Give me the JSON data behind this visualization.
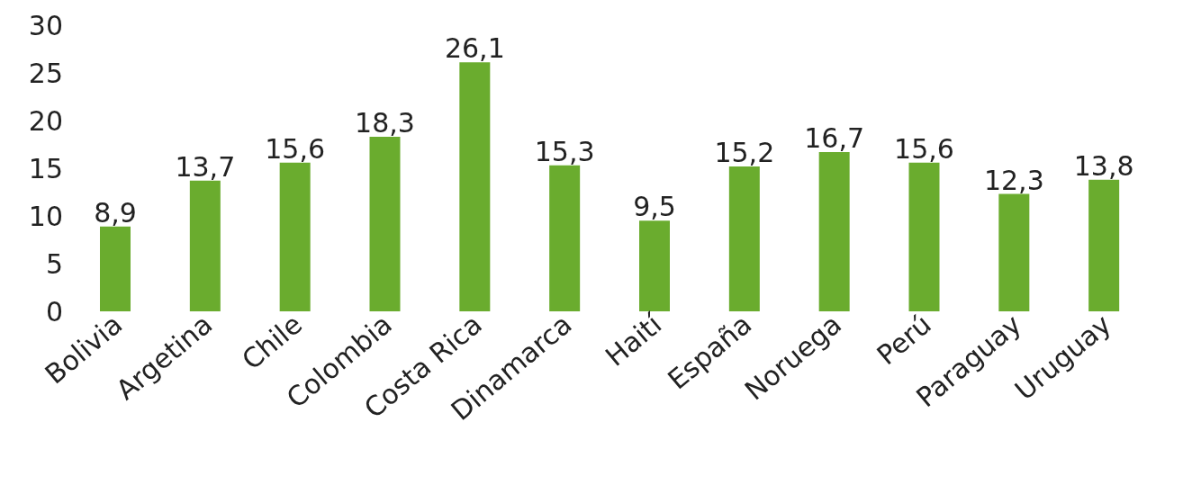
{
  "chart_data": {
    "type": "bar",
    "categories": [
      "Bolivia",
      "Argetina",
      "Chile",
      "Colombia",
      "Costa Rica",
      "Dinamarca",
      "Haití",
      "España",
      "Noruega",
      "Perú",
      "Paraguay",
      "Uruguay"
    ],
    "values": [
      8.9,
      13.7,
      15.6,
      18.3,
      26.1,
      15.3,
      9.5,
      15.2,
      16.7,
      15.6,
      12.3,
      13.8
    ],
    "value_labels": [
      "8,9",
      "13,7",
      "15,6",
      "18,3",
      "26,1",
      "15,3",
      "9,5",
      "15,2",
      "16,7",
      "15,6",
      "12,3",
      "13,8"
    ],
    "color": "#6aac2e",
    "ylim": [
      0,
      30
    ],
    "yticks": [
      0,
      5,
      10,
      15,
      20,
      25,
      30
    ],
    "grid": false,
    "legend": false
  }
}
